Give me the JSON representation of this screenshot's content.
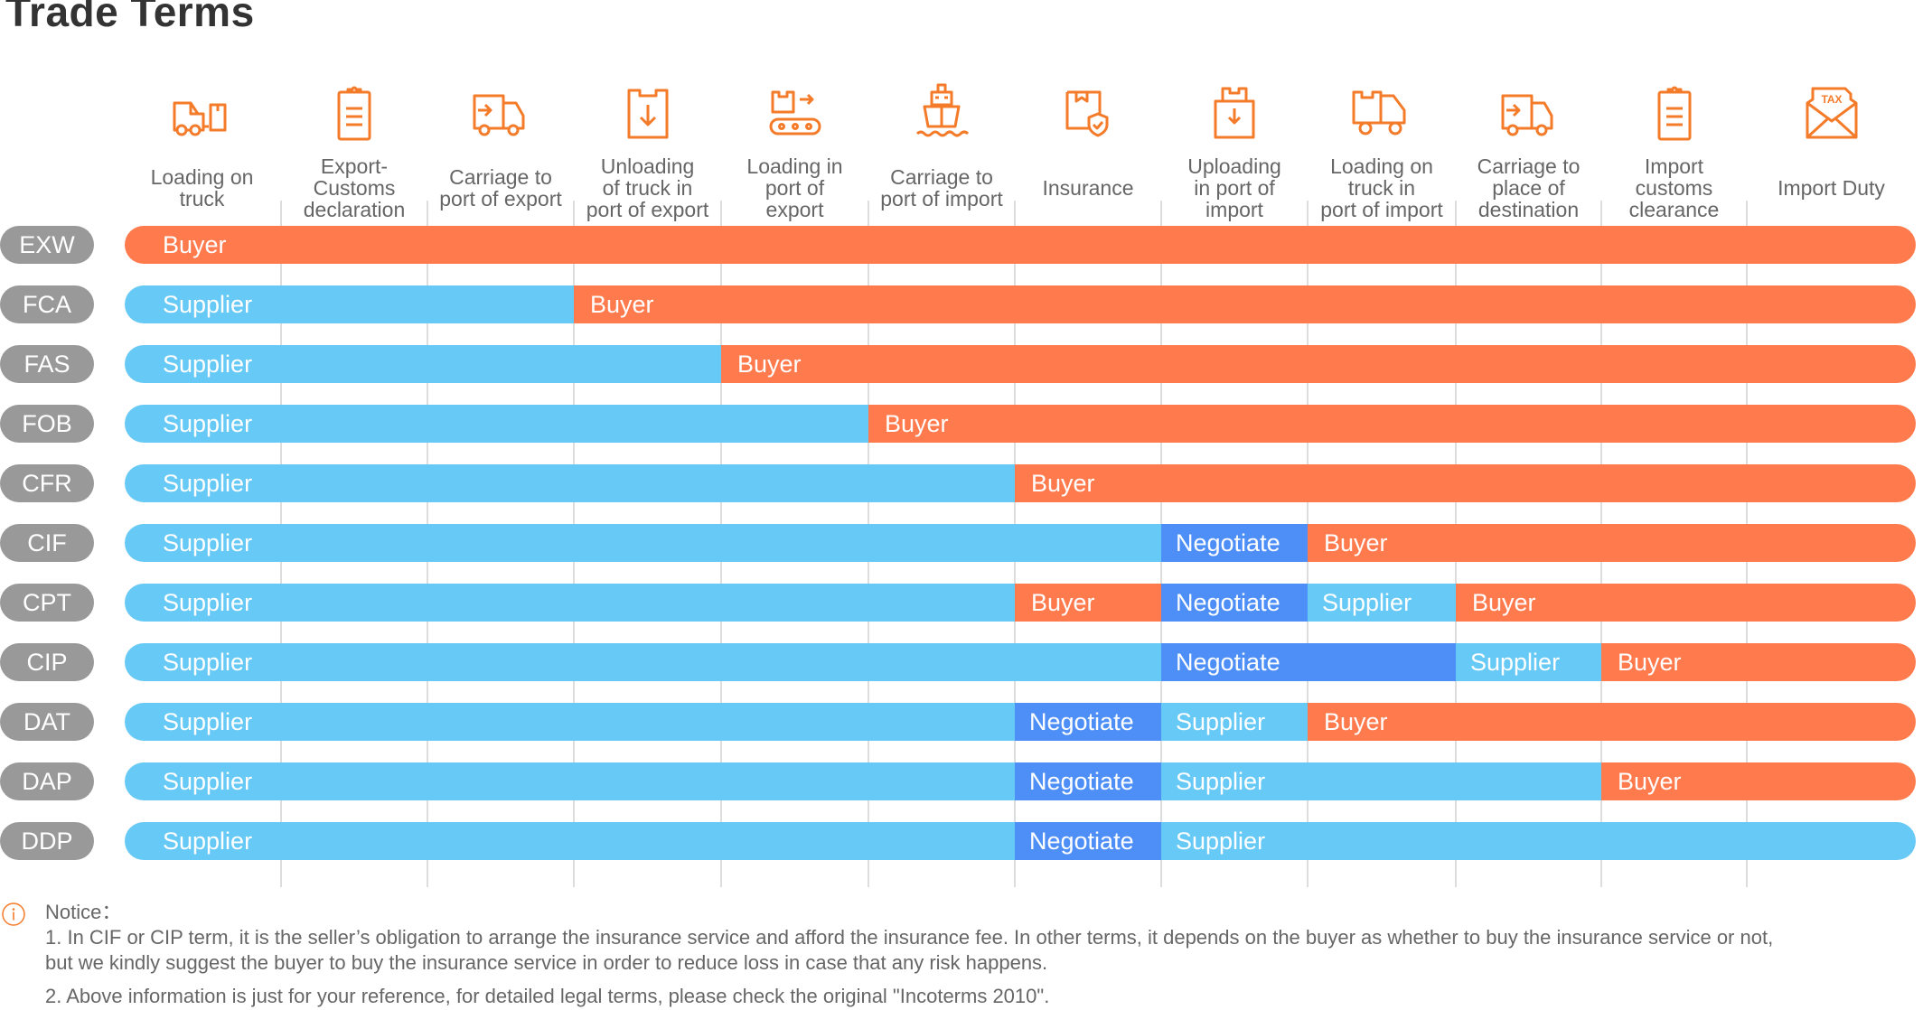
{
  "title": "Trade Terms",
  "colors": {
    "supplier": "#67c9f5",
    "buyer": "#ff7a4d",
    "negotiate": "#4d8ff7",
    "pill": "#999999",
    "icon": "#f47b2a"
  },
  "columns": [
    {
      "label": "Loading on\ntruck",
      "icon": "loading-truck-icon"
    },
    {
      "label": "Export-\nCustoms\ndeclaration",
      "icon": "clipboard-icon"
    },
    {
      "label": "Carriage to\nport of export",
      "icon": "delivery-truck-icon"
    },
    {
      "label": "Unloading\nof truck in\nport of export",
      "icon": "box-down-icon"
    },
    {
      "label": "Loading in\nport of\nexport",
      "icon": "conveyor-icon"
    },
    {
      "label": "Carriage to\nport of import",
      "icon": "ship-icon"
    },
    {
      "label": "Insurance",
      "icon": "insured-box-icon"
    },
    {
      "label": "Uploading\nin port of\nimport",
      "icon": "box-upload-icon"
    },
    {
      "label": "Loading on\ntruck in\nport of import",
      "icon": "box-truck-icon"
    },
    {
      "label": "Carriage to\nplace of\ndestination",
      "icon": "delivery-truck-icon"
    },
    {
      "label": "Import\ncustoms\nclearance",
      "icon": "clipboard-icon"
    },
    {
      "label": "Import Duty",
      "icon": "tax-envelope-icon"
    }
  ],
  "rows": [
    {
      "term": "EXW",
      "segments": [
        {
          "party": "buyer",
          "label": "Buyer",
          "from": 0,
          "to": 12
        }
      ]
    },
    {
      "term": "FCA",
      "segments": [
        {
          "party": "supplier",
          "label": "Supplier",
          "from": 0,
          "to": 3
        },
        {
          "party": "buyer",
          "label": "Buyer",
          "from": 3,
          "to": 12
        }
      ]
    },
    {
      "term": "FAS",
      "segments": [
        {
          "party": "supplier",
          "label": "Supplier",
          "from": 0,
          "to": 4
        },
        {
          "party": "buyer",
          "label": "Buyer",
          "from": 4,
          "to": 12
        }
      ]
    },
    {
      "term": "FOB",
      "segments": [
        {
          "party": "supplier",
          "label": "Supplier",
          "from": 0,
          "to": 5
        },
        {
          "party": "buyer",
          "label": "Buyer",
          "from": 5,
          "to": 12
        }
      ]
    },
    {
      "term": "CFR",
      "segments": [
        {
          "party": "supplier",
          "label": "Supplier",
          "from": 0,
          "to": 6
        },
        {
          "party": "buyer",
          "label": "Buyer",
          "from": 6,
          "to": 12
        }
      ]
    },
    {
      "term": "CIF",
      "segments": [
        {
          "party": "supplier",
          "label": "Supplier",
          "from": 0,
          "to": 7
        },
        {
          "party": "negotiate",
          "label": "Negotiate",
          "from": 7,
          "to": 8
        },
        {
          "party": "buyer",
          "label": "Buyer",
          "from": 8,
          "to": 12
        }
      ]
    },
    {
      "term": "CPT",
      "segments": [
        {
          "party": "supplier",
          "label": "Supplier",
          "from": 0,
          "to": 6
        },
        {
          "party": "buyer",
          "label": "Buyer",
          "from": 6,
          "to": 7
        },
        {
          "party": "negotiate",
          "label": "Negotiate",
          "from": 7,
          "to": 8
        },
        {
          "party": "supplier",
          "label": "Supplier",
          "from": 8,
          "to": 9
        },
        {
          "party": "buyer",
          "label": "Buyer",
          "from": 9,
          "to": 12
        }
      ]
    },
    {
      "term": "CIP",
      "segments": [
        {
          "party": "supplier",
          "label": "Supplier",
          "from": 0,
          "to": 7
        },
        {
          "party": "negotiate",
          "label": "Negotiate",
          "from": 7,
          "to": 9
        },
        {
          "party": "supplier",
          "label": "Supplier",
          "from": 9,
          "to": 10
        },
        {
          "party": "buyer",
          "label": "Buyer",
          "from": 10,
          "to": 12
        }
      ]
    },
    {
      "term": "DAT",
      "segments": [
        {
          "party": "supplier",
          "label": "Supplier",
          "from": 0,
          "to": 6
        },
        {
          "party": "negotiate",
          "label": "Negotiate",
          "from": 6,
          "to": 7
        },
        {
          "party": "supplier",
          "label": "Supplier",
          "from": 7,
          "to": 8
        },
        {
          "party": "buyer",
          "label": "Buyer",
          "from": 8,
          "to": 12
        }
      ]
    },
    {
      "term": "DAP",
      "segments": [
        {
          "party": "supplier",
          "label": "Supplier",
          "from": 0,
          "to": 6
        },
        {
          "party": "negotiate",
          "label": "Negotiate",
          "from": 6,
          "to": 7
        },
        {
          "party": "supplier",
          "label": "Supplier",
          "from": 7,
          "to": 10
        },
        {
          "party": "buyer",
          "label": "Buyer",
          "from": 10,
          "to": 12
        }
      ]
    },
    {
      "term": "DDP",
      "segments": [
        {
          "party": "supplier",
          "label": "Supplier",
          "from": 0,
          "to": 6
        },
        {
          "party": "negotiate",
          "label": "Negotiate",
          "from": 6,
          "to": 7
        },
        {
          "party": "supplier",
          "label": "Supplier",
          "from": 7,
          "to": 12
        }
      ]
    }
  ],
  "notice": {
    "heading": "Notice：",
    "line1": "1. In CIF or CIP term, it is the seller’s obligation to arrange the insurance service and afford the insurance fee. In other terms, it depends on the buyer as whether to buy the insurance service or not,",
    "line1b": "but we kindly suggest the buyer to buy the insurance service in order to reduce loss in case that any risk happens.",
    "line2": "2. Above information is just for your reference, for detailed legal terms, please check the original \"Incoterms 2010\"."
  }
}
